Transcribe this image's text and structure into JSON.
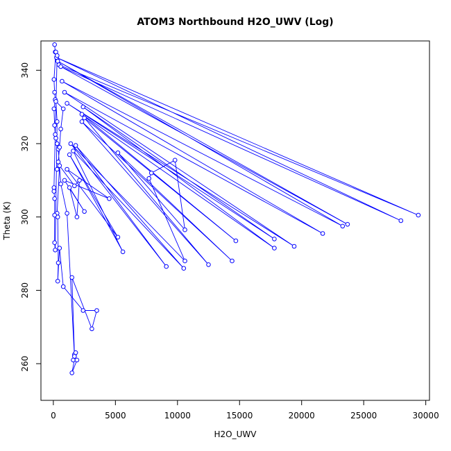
{
  "chart_data": {
    "type": "scatter",
    "title": "ATOM3 Northbound H2O_UWV (Log)",
    "xlabel": "H2O_UWV",
    "ylabel": "Theta (K)",
    "xlim": [
      -1000,
      30300
    ],
    "ylim": [
      250,
      348
    ],
    "xticks": [
      0,
      5000,
      10000,
      15000,
      20000,
      25000,
      30000
    ],
    "yticks": [
      260,
      280,
      300,
      320,
      340
    ],
    "grid": false,
    "legend": "none",
    "connected": true,
    "colors": {
      "series": "#0000ff",
      "axis": "#000000"
    },
    "series": [
      {
        "points": [
          [
            100,
            347
          ],
          [
            150,
            345
          ],
          [
            300,
            343
          ],
          [
            450,
            341.5
          ],
          [
            29400,
            300.5
          ],
          [
            250,
            343.5
          ],
          [
            28000,
            299
          ],
          [
            600,
            341
          ],
          [
            23700,
            298
          ],
          [
            350,
            342.5
          ],
          [
            23300,
            297.5
          ],
          [
            700,
            337
          ],
          [
            21700,
            295.5
          ],
          [
            900,
            334
          ],
          [
            19400,
            292
          ],
          [
            1100,
            331
          ],
          [
            17800,
            294
          ],
          [
            2400,
            330
          ],
          [
            17800,
            291.5
          ],
          [
            2300,
            328
          ],
          [
            14700,
            293.5
          ],
          [
            2500,
            327
          ],
          [
            12500,
            287
          ],
          [
            2300,
            326
          ],
          [
            14400,
            288
          ],
          [
            5200,
            317.5
          ],
          [
            10600,
            296.5
          ],
          [
            9800,
            315.5
          ],
          [
            7900,
            312
          ],
          [
            7700,
            310.5
          ],
          [
            10600,
            288
          ],
          [
            1400,
            320
          ],
          [
            9100,
            286.5
          ],
          [
            1800,
            319.5
          ],
          [
            10500,
            286
          ],
          [
            1600,
            318
          ],
          [
            5600,
            290.5
          ],
          [
            1300,
            317
          ],
          [
            5200,
            294.5
          ],
          [
            1100,
            313
          ],
          [
            4500,
            305
          ],
          [
            900,
            310
          ],
          [
            2500,
            301.5
          ],
          [
            1300,
            308
          ],
          [
            1900,
            300
          ],
          [
            2100,
            310
          ],
          [
            1700,
            308.5
          ],
          [
            500,
            314
          ],
          [
            300,
            301
          ],
          [
            350,
            300
          ],
          [
            400,
            287.5
          ],
          [
            350,
            282.5
          ],
          [
            500,
            291.5
          ],
          [
            800,
            281
          ],
          [
            2400,
            274.5
          ],
          [
            3500,
            274.5
          ],
          [
            3100,
            269.5
          ],
          [
            1500,
            283.5
          ],
          [
            1700,
            262.5
          ],
          [
            1600,
            261
          ],
          [
            1900,
            261
          ],
          [
            1500,
            257.5
          ],
          [
            1800,
            263
          ],
          [
            1700,
            262
          ],
          [
            1100,
            301
          ],
          [
            600,
            309
          ],
          [
            400,
            318.5
          ],
          [
            300,
            320
          ],
          [
            200,
            321.5
          ],
          [
            150,
            322.5
          ],
          [
            100,
            325
          ],
          [
            50,
            329.5
          ],
          [
            150,
            332
          ],
          [
            100,
            334
          ],
          [
            50,
            337.5
          ],
          [
            200,
            345
          ],
          [
            300,
            344
          ],
          [
            50,
            308
          ],
          [
            50,
            307
          ],
          [
            100,
            305
          ],
          [
            100,
            300.5
          ],
          [
            100,
            293
          ],
          [
            150,
            291
          ],
          [
            300,
            326
          ],
          [
            200,
            331.5
          ],
          [
            800,
            329.5
          ],
          [
            600,
            324
          ],
          [
            500,
            319
          ],
          [
            400,
            315
          ],
          [
            300,
            313
          ]
        ]
      }
    ]
  }
}
